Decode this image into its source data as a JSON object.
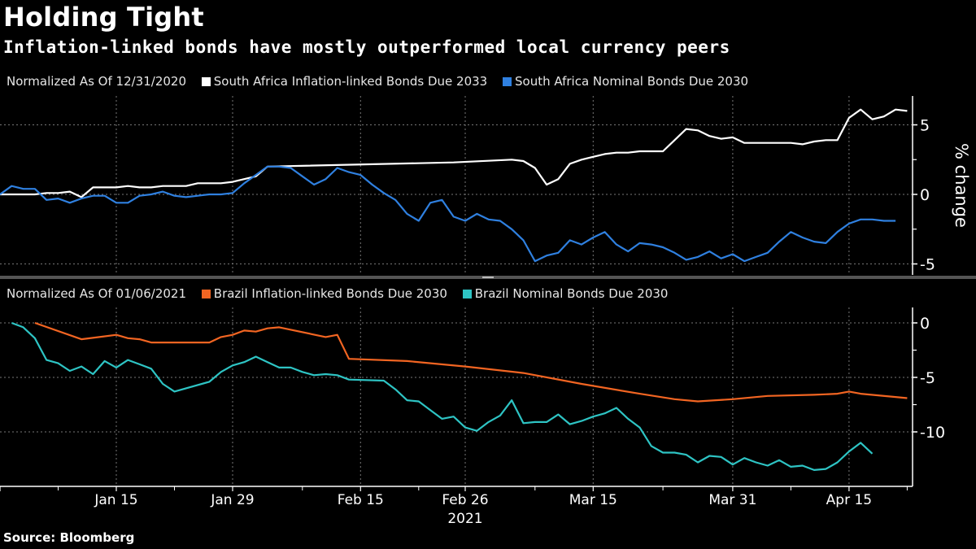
{
  "title": "Holding Tight",
  "subtitle": "Inflation-linked bonds have mostly outperformed local currency peers",
  "source": "Source: Bloomberg",
  "chart_data": [
    {
      "type": "line",
      "panel": "top",
      "normalized_label": "Normalized As Of 12/31/2020",
      "ylabel": "% change",
      "ylim": [
        -5.5,
        7
      ],
      "yticks": [
        5,
        0,
        -5
      ],
      "tick_labels": [
        "5",
        "0",
        "-5"
      ],
      "grid": true,
      "legend_position": "top-left",
      "series": [
        {
          "name": "South Africa Inflation-linked Bonds Due 2033",
          "color": "#ffffff",
          "points": [
            [
              0,
              0
            ],
            [
              1,
              0
            ],
            [
              2,
              0
            ],
            [
              3,
              0
            ],
            [
              4,
              0.1
            ],
            [
              5,
              0.1
            ],
            [
              6,
              0.2
            ],
            [
              7,
              -0.2
            ],
            [
              8,
              0.5
            ],
            [
              9,
              0.5
            ],
            [
              10,
              0.5
            ],
            [
              11,
              0.6
            ],
            [
              12,
              0.5
            ],
            [
              13,
              0.5
            ],
            [
              14,
              0.6
            ],
            [
              15,
              0.6
            ],
            [
              16,
              0.6
            ],
            [
              17,
              0.8
            ],
            [
              18,
              0.8
            ],
            [
              19,
              0.8
            ],
            [
              20,
              0.9
            ],
            [
              21,
              1.1
            ],
            [
              22,
              1.3
            ],
            [
              23,
              2.0
            ],
            [
              39,
              2.3
            ],
            [
              44,
              2.5
            ],
            [
              45,
              2.4
            ],
            [
              46,
              1.9
            ],
            [
              47,
              0.7
            ],
            [
              48,
              1.1
            ],
            [
              49,
              2.2
            ],
            [
              50,
              2.5
            ],
            [
              51,
              2.7
            ],
            [
              52,
              2.9
            ],
            [
              53,
              3.0
            ],
            [
              54,
              3.0
            ],
            [
              55,
              3.1
            ],
            [
              56,
              3.1
            ],
            [
              57,
              3.1
            ],
            [
              58,
              3.9
            ],
            [
              59,
              4.7
            ],
            [
              60,
              4.6
            ],
            [
              61,
              4.2
            ],
            [
              62,
              4.0
            ],
            [
              63,
              4.1
            ],
            [
              64,
              3.7
            ],
            [
              65,
              3.7
            ],
            [
              66,
              3.7
            ],
            [
              67,
              3.7
            ],
            [
              68,
              3.7
            ],
            [
              69,
              3.6
            ],
            [
              70,
              3.8
            ],
            [
              71,
              3.9
            ],
            [
              72,
              3.9
            ],
            [
              73,
              5.5
            ],
            [
              74,
              6.1
            ],
            [
              75,
              5.4
            ],
            [
              76,
              5.6
            ],
            [
              77,
              6.1
            ],
            [
              78,
              6.0
            ]
          ]
        },
        {
          "name": "South Africa Nominal Bonds Due 2030",
          "color": "#2f80e0",
          "points": [
            [
              0,
              0
            ],
            [
              1,
              0.6
            ],
            [
              2,
              0.4
            ],
            [
              3,
              0.4
            ],
            [
              4,
              -0.4
            ],
            [
              5,
              -0.3
            ],
            [
              6,
              -0.6
            ],
            [
              7,
              -0.3
            ],
            [
              8,
              -0.1
            ],
            [
              9,
              -0.1
            ],
            [
              10,
              -0.6
            ],
            [
              11,
              -0.6
            ],
            [
              12,
              -0.1
            ],
            [
              13,
              0
            ],
            [
              14,
              0.2
            ],
            [
              15,
              -0.1
            ],
            [
              16,
              -0.2
            ],
            [
              17,
              -0.1
            ],
            [
              18,
              0
            ],
            [
              19,
              0
            ],
            [
              20,
              0.1
            ],
            [
              21,
              0.8
            ],
            [
              22,
              1.4
            ],
            [
              23,
              2.0
            ],
            [
              24,
              2.0
            ],
            [
              25,
              1.9
            ],
            [
              26,
              1.3
            ],
            [
              27,
              0.7
            ],
            [
              28,
              1.1
            ],
            [
              29,
              1.9
            ],
            [
              30,
              1.6
            ],
            [
              31,
              1.4
            ],
            [
              32,
              0.7
            ],
            [
              33,
              0.1
            ],
            [
              34,
              -0.4
            ],
            [
              35,
              -1.4
            ],
            [
              36,
              -1.9
            ],
            [
              37,
              -0.6
            ],
            [
              38,
              -0.4
            ],
            [
              39,
              -1.6
            ],
            [
              40,
              -1.9
            ],
            [
              41,
              -1.4
            ],
            [
              42,
              -1.8
            ],
            [
              43,
              -1.9
            ],
            [
              44,
              -2.5
            ],
            [
              45,
              -3.3
            ],
            [
              46,
              -4.8
            ],
            [
              47,
              -4.4
            ],
            [
              48,
              -4.2
            ],
            [
              49,
              -3.3
            ],
            [
              50,
              -3.6
            ],
            [
              51,
              -3.1
            ],
            [
              52,
              -2.7
            ],
            [
              53,
              -3.6
            ],
            [
              54,
              -4.1
            ],
            [
              55,
              -3.5
            ],
            [
              56,
              -3.6
            ],
            [
              57,
              -3.8
            ],
            [
              58,
              -4.2
            ],
            [
              59,
              -4.7
            ],
            [
              60,
              -4.5
            ],
            [
              61,
              -4.1
            ],
            [
              62,
              -4.6
            ],
            [
              63,
              -4.3
            ],
            [
              64,
              -4.8
            ],
            [
              65,
              -4.5
            ],
            [
              66,
              -4.2
            ],
            [
              67,
              -3.4
            ],
            [
              68,
              -2.7
            ],
            [
              69,
              -3.1
            ],
            [
              70,
              -3.4
            ],
            [
              71,
              -3.5
            ],
            [
              72,
              -2.7
            ],
            [
              73,
              -2.1
            ],
            [
              74,
              -1.8
            ],
            [
              75,
              -1.8
            ],
            [
              76,
              -1.9
            ],
            [
              77,
              -1.9
            ]
          ]
        }
      ]
    },
    {
      "type": "line",
      "panel": "bottom",
      "normalized_label": "Normalized As Of 01/06/2021",
      "ylim": [
        -15,
        1.5
      ],
      "yticks": [
        0,
        -5,
        -10
      ],
      "tick_labels": [
        "0",
        "-5",
        "-10"
      ],
      "grid": true,
      "legend_position": "top-left",
      "series": [
        {
          "name": "Brazil Inflation-linked Bonds Due 2030",
          "color": "#f26522",
          "points": [
            [
              3,
              0
            ],
            [
              7,
              -1.5
            ],
            [
              10,
              -1.1
            ],
            [
              11,
              -1.4
            ],
            [
              12,
              -1.5
            ],
            [
              13,
              -1.8
            ],
            [
              18,
              -1.8
            ],
            [
              19,
              -1.3
            ],
            [
              20,
              -1.1
            ],
            [
              21,
              -0.7
            ],
            [
              22,
              -0.8
            ],
            [
              23,
              -0.5
            ],
            [
              24,
              -0.4
            ],
            [
              28,
              -1.3
            ],
            [
              29,
              -1.1
            ],
            [
              30,
              -3.3
            ],
            [
              35,
              -3.5
            ],
            [
              40,
              -4.0
            ],
            [
              45,
              -4.6
            ],
            [
              50,
              -5.6
            ],
            [
              55,
              -6.5
            ],
            [
              58,
              -7.0
            ],
            [
              60,
              -7.2
            ],
            [
              63,
              -7.0
            ],
            [
              66,
              -6.7
            ],
            [
              70,
              -6.6
            ],
            [
              72,
              -6.5
            ],
            [
              73,
              -6.3
            ],
            [
              74,
              -6.5
            ],
            [
              77,
              -6.8
            ],
            [
              78,
              -6.9
            ]
          ]
        },
        {
          "name": "Brazil Nominal Bonds Due 2030",
          "color": "#2ec4c4",
          "points": [
            [
              1,
              0
            ],
            [
              2,
              -0.4
            ],
            [
              3,
              -1.4
            ],
            [
              4,
              -3.4
            ],
            [
              5,
              -3.7
            ],
            [
              6,
              -4.4
            ],
            [
              7,
              -4.0
            ],
            [
              8,
              -4.7
            ],
            [
              9,
              -3.5
            ],
            [
              10,
              -4.1
            ],
            [
              11,
              -3.4
            ],
            [
              12,
              -3.8
            ],
            [
              13,
              -4.2
            ],
            [
              14,
              -5.6
            ],
            [
              15,
              -6.3
            ],
            [
              18,
              -5.4
            ],
            [
              19,
              -4.5
            ],
            [
              20,
              -3.9
            ],
            [
              21,
              -3.6
            ],
            [
              22,
              -3.1
            ],
            [
              23,
              -3.6
            ],
            [
              24,
              -4.1
            ],
            [
              25,
              -4.1
            ],
            [
              26,
              -4.5
            ],
            [
              27,
              -4.8
            ],
            [
              28,
              -4.7
            ],
            [
              29,
              -4.8
            ],
            [
              30,
              -5.2
            ],
            [
              33,
              -5.3
            ],
            [
              34,
              -6.1
            ],
            [
              35,
              -7.1
            ],
            [
              36,
              -7.2
            ],
            [
              37,
              -8.0
            ],
            [
              38,
              -8.8
            ],
            [
              39,
              -8.6
            ],
            [
              40,
              -9.6
            ],
            [
              41,
              -9.9
            ],
            [
              42,
              -9.1
            ],
            [
              43,
              -8.5
            ],
            [
              44,
              -7.1
            ],
            [
              45,
              -9.2
            ],
            [
              46,
              -9.1
            ],
            [
              47,
              -9.1
            ],
            [
              48,
              -8.4
            ],
            [
              49,
              -9.3
            ],
            [
              50,
              -9.0
            ],
            [
              51,
              -8.6
            ],
            [
              52,
              -8.3
            ],
            [
              53,
              -7.8
            ],
            [
              54,
              -8.8
            ],
            [
              55,
              -9.6
            ],
            [
              56,
              -11.3
            ],
            [
              57,
              -11.9
            ],
            [
              58,
              -11.9
            ],
            [
              59,
              -12.1
            ],
            [
              60,
              -12.8
            ],
            [
              61,
              -12.2
            ],
            [
              62,
              -12.3
            ],
            [
              63,
              -13.0
            ],
            [
              64,
              -12.4
            ],
            [
              65,
              -12.8
            ],
            [
              66,
              -13.1
            ],
            [
              67,
              -12.6
            ],
            [
              68,
              -13.2
            ],
            [
              69,
              -13.1
            ],
            [
              70,
              -13.5
            ],
            [
              71,
              -13.4
            ],
            [
              72,
              -12.8
            ],
            [
              73,
              -11.8
            ],
            [
              74,
              -11.0
            ],
            [
              75,
              -12.0
            ]
          ]
        }
      ]
    },
    {
      "type": "axis",
      "x_tick_labels": [
        {
          "label": "Jan 15",
          "index": 10
        },
        {
          "label": "Jan 29",
          "index": 20
        },
        {
          "label": "Feb 15",
          "index": 31
        },
        {
          "label": "Feb 26",
          "index": 40
        },
        {
          "label": "Mar 15",
          "index": 51
        },
        {
          "label": "Mar 31",
          "index": 63
        },
        {
          "label": "Apr 15",
          "index": 73
        }
      ],
      "x_minor_ticks": [
        5,
        15,
        26,
        36,
        46,
        57,
        68,
        78
      ],
      "year_label": "2021"
    }
  ]
}
